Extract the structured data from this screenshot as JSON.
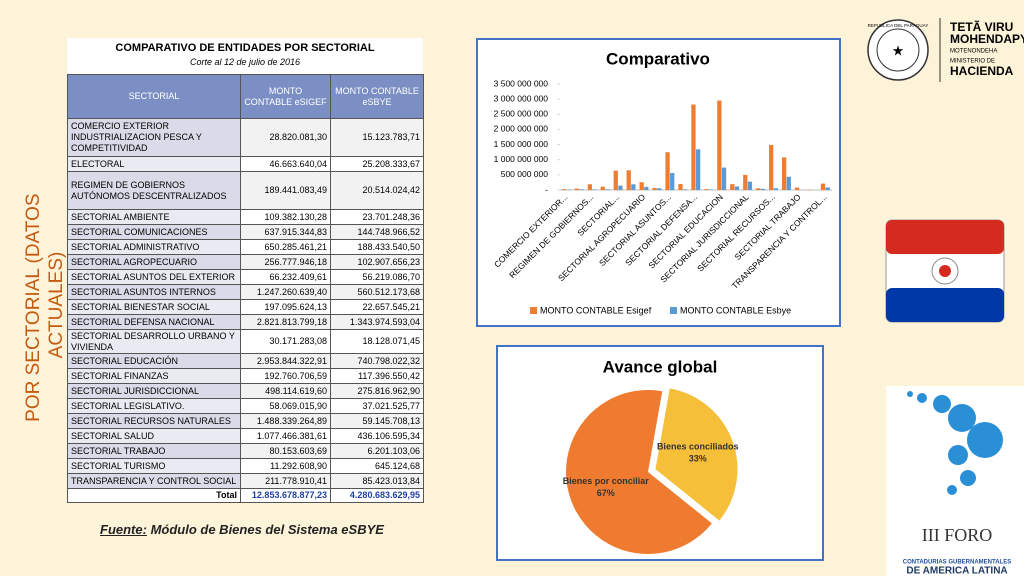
{
  "side_title": [
    "POR SECTORIAL (DATOS",
    "ACTUALES)"
  ],
  "table": {
    "title": "COMPARATIVO DE ENTIDADES POR SECTORIAL",
    "subtitle": "Corte al 12 de julio de 2016",
    "headers": [
      "SECTORIAL",
      "MONTO CONTABLE eSIGEF",
      "MONTO CONTABLE eSBYE"
    ],
    "rows": [
      [
        "COMERCIO EXTERIOR INDUSTRIALIZACION PESCA Y COMPETITIVIDAD",
        "28.820.081,30",
        "15.123.783,71"
      ],
      [
        "ELECTORAL",
        "46.663.640,04",
        "25.208.333,67"
      ],
      [
        "REGIMEN DE GOBIERNOS AUTÓNOMOS DESCENTRALIZADOS",
        "189.441.083,49",
        "20.514.024,42"
      ],
      [
        "SECTORIAL  AMBIENTE",
        "109.382.130,28",
        "23.701.248,36"
      ],
      [
        "SECTORIAL  COMUNICACIONES",
        "637.915.344,83",
        "144.748.966,52"
      ],
      [
        "SECTORIAL ADMINISTRATIVO",
        "650.285.461,21",
        "188.433.540,50"
      ],
      [
        "SECTORIAL AGROPECUARIO",
        "256.777.946,18",
        "102.907.656,23"
      ],
      [
        "SECTORIAL ASUNTOS DEL EXTERIOR",
        "66.232.409,61",
        "56.219.086,70"
      ],
      [
        "SECTORIAL ASUNTOS INTERNOS",
        "1.247.260.639,40",
        "560.512.173,68"
      ],
      [
        "SECTORIAL BIENESTAR SOCIAL",
        "197.095.624,13",
        "22.657.545,21"
      ],
      [
        "SECTORIAL DEFENSA NACIONAL",
        "2.821.813.799,18",
        "1.343.974.593,04"
      ],
      [
        "SECTORIAL DESARROLLO URBANO Y VIVIENDA",
        "30.171.283,08",
        "18.128.071,45"
      ],
      [
        "SECTORIAL EDUCACIÓN",
        "2.953.844.322,91",
        "740.798.022,32"
      ],
      [
        "SECTORIAL FINANZAS",
        "192.760.706,59",
        "117.396.550,42"
      ],
      [
        "SECTORIAL JURISDICCIONAL",
        "498.114.619,60",
        "275.816.962,90"
      ],
      [
        "SECTORIAL LEGISLATIVO.",
        "58.069.015,90",
        "37.021.525,77"
      ],
      [
        "SECTORIAL RECURSOS NATURALES",
        "1.488.339.264,89",
        "59.145.708,13"
      ],
      [
        "SECTORIAL SALUD",
        "1.077.466.381,61",
        "436.106.595,34"
      ],
      [
        "SECTORIAL TRABAJO",
        "80.153.603,69",
        "6.201.103,06"
      ],
      [
        "SECTORIAL TURISMO",
        "11.292.608,90",
        "645.124,68"
      ],
      [
        "TRANSPARENCIA Y CONTROL SOCIAL",
        "211.778.910,41",
        "85.423.013,84"
      ]
    ],
    "total": [
      "Total",
      "12.853.678.877,23",
      "4.280.683.629,95"
    ]
  },
  "source": {
    "label": "Fuente:",
    "text": "Módulo de Bienes del Sistema eSBYE"
  },
  "logo": {
    "seal": "REPUBLICA DEL PARAGUAY",
    "line1": "TETÃ VIRU",
    "line2": "MOHENDAPY",
    "line3": "MOTENONDEHA",
    "line4": "MINISTERIO DE",
    "line5": "HACIENDA"
  },
  "foro": {
    "title": "III FORO",
    "line1": "CONTADURIAS GUBERNAMENTALES",
    "line2": "DE AMERICA LATINA"
  },
  "chart_data": [
    {
      "type": "bar",
      "title": "Comparativo",
      "categories": [
        "COMERCIO EXTERIOR...",
        null,
        "REGIMEN DE GOBIERNOS...",
        null,
        "SECTORIAL...",
        null,
        "SECTORIAL AGROPECUARIO",
        null,
        "SECTORIAL ASUNTOS...",
        null,
        "SECTORIAL DEFENSA...",
        null,
        "SECTORIAL EDUCACION",
        null,
        "SECTORIAL JURISDICCIONAL",
        null,
        "SECTORIAL RECURSOS...",
        null,
        "SECTORIAL TRABAJO",
        null,
        "TRANSPARENCIA Y CONTROL..."
      ],
      "series": [
        {
          "name": "MONTO CONTABLE Esigef",
          "color": "#ed7d31",
          "values": [
            28820081.3,
            46663640.04,
            189441083.49,
            109382130.28,
            637915344.83,
            650285461.21,
            256777946.18,
            66232409.61,
            1247260639.4,
            197095624.13,
            2821813799.18,
            30171283.08,
            2953844322.91,
            192760706.59,
            498114619.6,
            58069015.9,
            1488339264.89,
            1077466381.61,
            80153603.69,
            11292608.9,
            211778910.41
          ]
        },
        {
          "name": "MONTO CONTABLE Esbye",
          "color": "#5b9bd5",
          "values": [
            15123783.71,
            25208333.67,
            20514024.42,
            23701248.36,
            144748966.52,
            188433540.5,
            102907656.23,
            56219086.7,
            560512173.68,
            22657545.21,
            1343974593.04,
            18128071.45,
            740798022.32,
            117396550.42,
            275816962.9,
            37021525.77,
            59145708.13,
            436106595.34,
            6201103.06,
            645124.68,
            85423013.84
          ]
        }
      ],
      "ylim": [
        0,
        3500000000
      ],
      "yticks": [
        {
          "value": 0,
          "label": "-"
        },
        {
          "value": 500000000,
          "label": "500 000 000"
        },
        {
          "value": 1000000000,
          "label": "1 000 000 000"
        },
        {
          "value": 1500000000,
          "label": "1 500 000 000"
        },
        {
          "value": 2000000000,
          "label": "2 000 000 000"
        },
        {
          "value": 2500000000,
          "label": "2 500 000 000"
        },
        {
          "value": 3000000000,
          "label": "3 000 000 000"
        },
        {
          "value": 3500000000,
          "label": "3 500 000 000"
        }
      ],
      "grid": false,
      "legend": "bottom"
    },
    {
      "type": "pie",
      "title": "Avance global",
      "categories": [
        "Bienes conciliados",
        "Bienes por conciliar"
      ],
      "values": [
        33,
        67
      ],
      "value_labels": [
        "33%",
        "67%"
      ],
      "colors": [
        "#f5bf3a",
        "#ee7b30"
      ]
    }
  ]
}
